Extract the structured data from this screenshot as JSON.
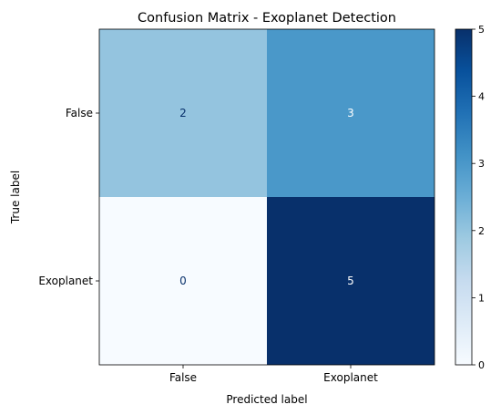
{
  "chart_data": {
    "type": "heatmap",
    "title": "Confusion Matrix - Exoplanet Detection",
    "xlabel": "Predicted label",
    "ylabel": "True label",
    "x_categories": [
      "False",
      "Exoplanet"
    ],
    "y_categories": [
      "False",
      "Exoplanet"
    ],
    "values": [
      [
        2,
        3
      ],
      [
        0,
        5
      ]
    ],
    "colormap": "Blues",
    "colorbar": {
      "min": 0,
      "max": 5,
      "ticks": [
        0,
        1,
        2,
        3,
        4,
        5
      ],
      "tick_labels": [
        "0",
        "1",
        "2",
        "3",
        "4",
        "5"
      ]
    },
    "grid": false,
    "legend": "colorbar-right"
  }
}
